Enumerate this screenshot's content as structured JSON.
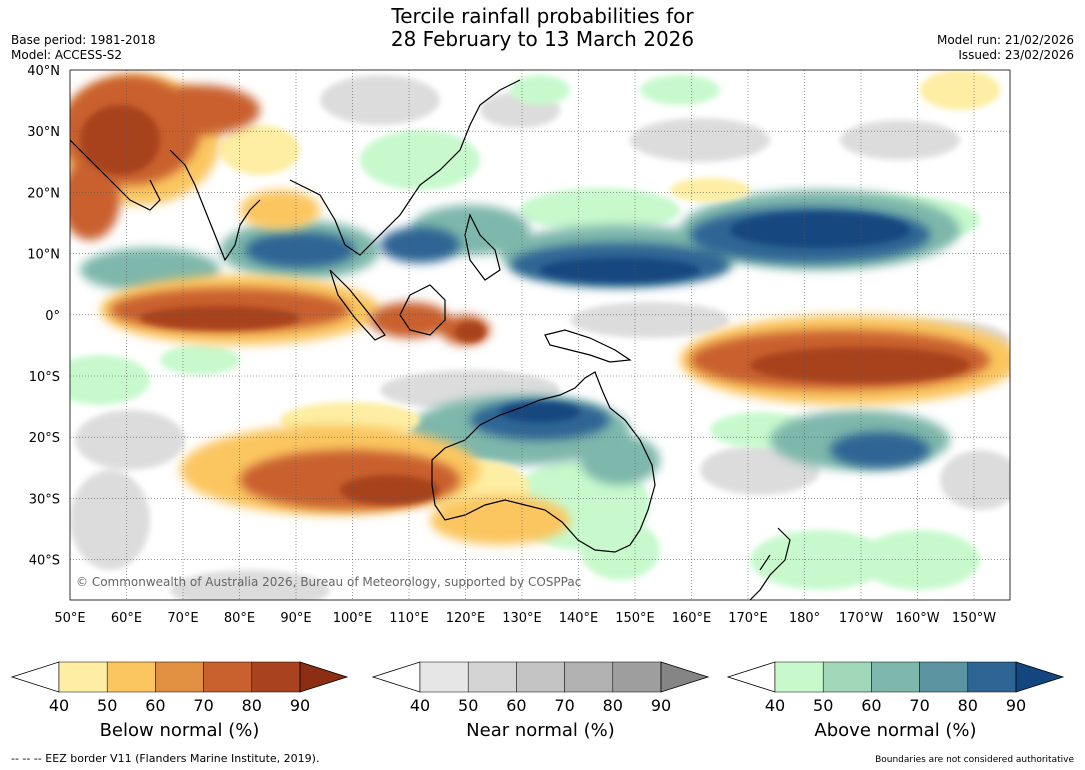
{
  "title_line1": "Tercile rainfall probabilities for",
  "title_line2": "28 February to 13 March 2026",
  "base_period": "Base period: 1981-2018",
  "model": "Model: ACCESS-S2",
  "model_run": "Model run: 21/02/2026",
  "issued": "Issued: 23/02/2026",
  "copyright": "© Commonwealth of Australia 2026, Bureau of Meteorology, supported by COSPPac",
  "footer_left": "--  --  -- EEZ border V11 (Flanders Marine Institute, 2019).",
  "footer_right": "Boundaries are not considered authoritative",
  "lat_labels": [
    "40°N",
    "30°N",
    "20°N",
    "10°N",
    "0°",
    "10°S",
    "20°S",
    "30°S",
    "40°S"
  ],
  "lon_labels": [
    "50°E",
    "60°E",
    "70°E",
    "80°E",
    "90°E",
    "100°E",
    "110°E",
    "120°E",
    "130°E",
    "140°E",
    "150°E",
    "160°E",
    "170°E",
    "180°",
    "170°W",
    "160°W",
    "150°W"
  ],
  "colorbars": [
    {
      "label": "Below normal (%)",
      "ticks": [
        "40",
        "50",
        "60",
        "70",
        "80",
        "90"
      ],
      "colors": [
        "#fdeea3",
        "#fbc660",
        "#e09040",
        "#c9612e",
        "#a8421f",
        "#8b2e14"
      ]
    },
    {
      "label": "Near normal (%)",
      "ticks": [
        "40",
        "50",
        "60",
        "70",
        "80",
        "90"
      ],
      "colors": [
        "#e6e6e6",
        "#d4d4d4",
        "#c4c4c4",
        "#b1b1b1",
        "#9e9e9e",
        "#858585"
      ]
    },
    {
      "label": "Above normal (%)",
      "ticks": [
        "40",
        "50",
        "60",
        "70",
        "80",
        "90"
      ],
      "colors": [
        "#c8f9cd",
        "#a2d6b8",
        "#7eb7ab",
        "#5b93a0",
        "#2f6594",
        "#13467f"
      ]
    }
  ]
}
